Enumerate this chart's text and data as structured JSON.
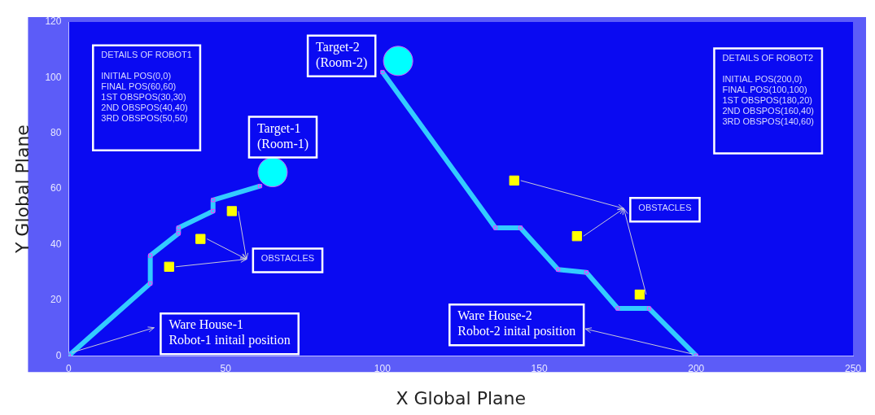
{
  "chart_data": {
    "type": "scatter",
    "xlabel": "X Global Plane",
    "ylabel": "Y Global Plane",
    "xlim": [
      0,
      250
    ],
    "xticks": [
      0,
      50,
      100,
      150,
      200,
      250
    ],
    "ylim": [
      0,
      120
    ],
    "yticks": [
      0,
      20,
      40,
      60,
      80,
      100,
      120
    ],
    "grid": false,
    "legend": false,
    "series": [
      {
        "type": "line",
        "color": "#33ccff",
        "marker": "square",
        "x": [
          0,
          26,
          26,
          35,
          35,
          46,
          46,
          61
        ],
        "values": [
          0,
          26,
          36,
          44,
          46,
          52,
          56,
          61
        ]
      },
      {
        "type": "line",
        "color": "#33ccff",
        "marker": "square",
        "x": [
          100,
          136,
          144,
          156,
          165,
          175,
          185,
          200
        ],
        "values": [
          102,
          46,
          46,
          31,
          30,
          17,
          17,
          0
        ]
      },
      {
        "type": "scatter",
        "color": "#00ffff",
        "marker": "circle",
        "x": [
          65,
          105
        ],
        "values": [
          66,
          106
        ]
      },
      {
        "type": "scatter",
        "color": "#ffff00",
        "marker": "square",
        "x": [
          32,
          42,
          52,
          142,
          162,
          182
        ],
        "values": [
          32,
          42,
          52,
          63,
          43,
          22
        ]
      }
    ],
    "annotations": [
      "DETAILS OF ROBOT1\n\nINITIAL POS(0,0)\nFINAL POS(60,60)\n1ST OBSPOS(30,30)\n2ND OBSPOS(40,40)\n3RD OBSPOS(50,50)",
      "DETAILS OF ROBOT2\n\nINITIAL POS(200,0)\nFINAL POS(100,100)\n1ST OBSPOS(180,20)\n2ND OBSPOS(160,40)\n3RD OBSPOS(140,60)",
      {
        "text": "Target-1\n(Room-1)",
        "x": 65,
        "y": 66
      },
      {
        "text": "Target-2\n(Room-2)",
        "x": 105,
        "y": 106
      },
      {
        "text": "Ware House-1\nRobot-1 initail position",
        "x": 0,
        "y": 0
      },
      {
        "text": "Ware House-2\nRobot-2 inital position",
        "x": 200,
        "y": 0
      },
      "OBSTACLES",
      "OBSTACLES"
    ]
  }
}
